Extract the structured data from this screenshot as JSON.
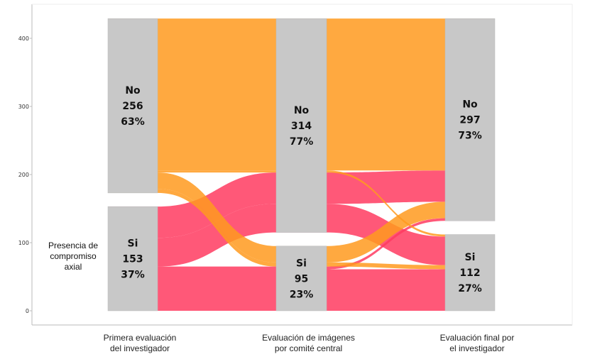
{
  "chart_data": {
    "type": "alluvial",
    "ylim": [
      0,
      430
    ],
    "yticks": [
      "0",
      "100",
      "200",
      "300",
      "400"
    ],
    "axes": [
      {
        "label": [
          "Primera evaluación",
          "del investigador"
        ],
        "strata": [
          {
            "name": "No",
            "count": "256",
            "pct": "63%"
          },
          {
            "name": "Si",
            "count": "153",
            "pct": "37%"
          }
        ]
      },
      {
        "label": [
          "Evaluación de imágenes",
          "por comité central"
        ],
        "strata": [
          {
            "name": "No",
            "count": "314",
            "pct": "77%"
          },
          {
            "name": "Si",
            "count": "95",
            "pct": "23%"
          }
        ]
      },
      {
        "label": [
          "Evaluación final por",
          "el investigador"
        ],
        "strata": [
          {
            "name": "No",
            "count": "297",
            "pct": "73%"
          },
          {
            "name": "Si",
            "count": "112",
            "pct": "27%"
          }
        ]
      }
    ],
    "annotation": [
      "Presencia de",
      "compromiso",
      "axial"
    ],
    "alluvia": [
      {
        "path": [
          "No",
          "No",
          "No"
        ],
        "value": 223
      },
      {
        "path": [
          "No",
          "No",
          "Si"
        ],
        "value": 3
      },
      {
        "path": [
          "No",
          "Si",
          "No"
        ],
        "value": 24
      },
      {
        "path": [
          "No",
          "Si",
          "Si"
        ],
        "value": 6
      },
      {
        "path": [
          "Si",
          "No",
          "No"
        ],
        "value": 46
      },
      {
        "path": [
          "Si",
          "No",
          "Si"
        ],
        "value": 42
      },
      {
        "path": [
          "Si",
          "Si",
          "No"
        ],
        "value": 4
      },
      {
        "path": [
          "Si",
          "Si",
          "Si"
        ],
        "value": 61
      }
    ],
    "fill_by_first_axis": {
      "No": "#FF9A1F",
      "Si": "#FF3B60"
    },
    "stratum_color": "#C8C8C8",
    "grid": false
  }
}
